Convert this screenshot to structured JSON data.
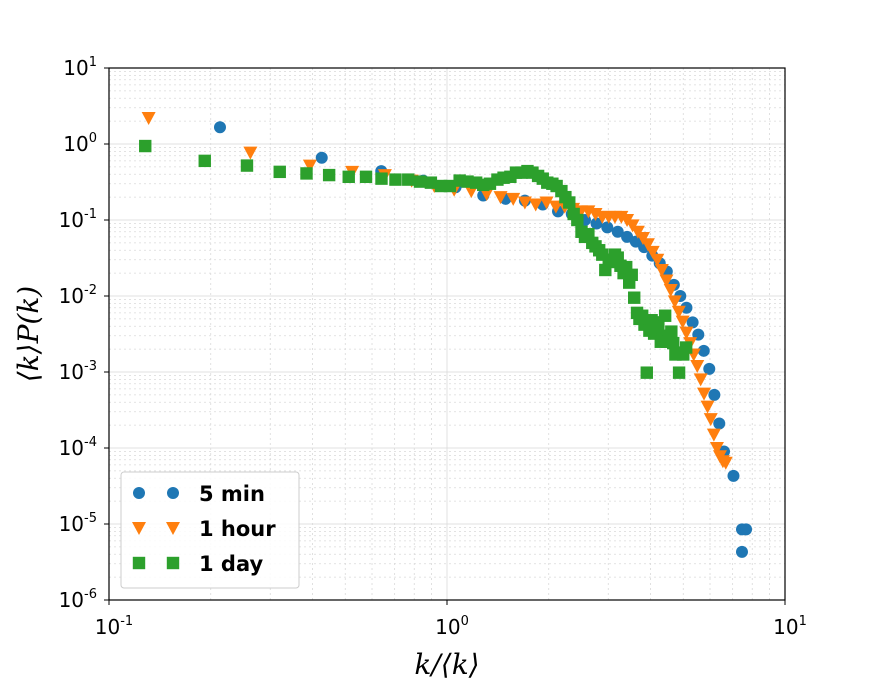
{
  "chart_data": {
    "type": "scatter",
    "xscale": "log",
    "yscale": "log",
    "xlim": [
      0.1,
      10
    ],
    "ylim": [
      1e-06,
      10
    ],
    "grid": true,
    "xlabel": "k/⟨k⟩",
    "ylabel": "⟨k⟩P(k)",
    "x_ticks": [
      {
        "base": "10",
        "exp": "-1"
      },
      {
        "base": "10",
        "exp": "0"
      },
      {
        "base": "10",
        "exp": "1"
      }
    ],
    "y_ticks": [
      {
        "base": "10",
        "exp": "-6"
      },
      {
        "base": "10",
        "exp": "-5"
      },
      {
        "base": "10",
        "exp": "-4"
      },
      {
        "base": "10",
        "exp": "-3"
      },
      {
        "base": "10",
        "exp": "-2"
      },
      {
        "base": "10",
        "exp": "-1"
      },
      {
        "base": "10",
        "exp": "0"
      },
      {
        "base": "10",
        "exp": "1"
      }
    ],
    "legend_position": "lower-left",
    "series": [
      {
        "name": "5 min",
        "marker": "circle",
        "color": "#1f77b4",
        "points": [
          [
            0.213,
            1.66
          ],
          [
            0.426,
            0.66
          ],
          [
            0.639,
            0.44
          ],
          [
            0.85,
            0.33
          ],
          [
            1.06,
            0.27
          ],
          [
            1.28,
            0.21
          ],
          [
            1.49,
            0.19
          ],
          [
            1.7,
            0.18
          ],
          [
            1.92,
            0.16
          ],
          [
            2.13,
            0.13
          ],
          [
            2.34,
            0.12
          ],
          [
            2.56,
            0.1
          ],
          [
            2.77,
            0.09
          ],
          [
            2.98,
            0.08
          ],
          [
            3.2,
            0.07
          ],
          [
            3.41,
            0.06
          ],
          [
            3.62,
            0.052
          ],
          [
            3.83,
            0.044
          ],
          [
            4.05,
            0.034
          ],
          [
            4.26,
            0.027
          ],
          [
            4.47,
            0.021
          ],
          [
            4.69,
            0.014
          ],
          [
            4.9,
            0.01
          ],
          [
            5.11,
            0.007
          ],
          [
            5.33,
            0.0045
          ],
          [
            5.54,
            0.0031
          ],
          [
            5.75,
            0.0019
          ],
          [
            5.97,
            0.0011
          ],
          [
            6.18,
            0.0005
          ],
          [
            6.39,
            0.00021
          ],
          [
            6.6,
            9e-05
          ],
          [
            7.04,
            4.3e-05
          ],
          [
            7.46,
            8.5e-06
          ],
          [
            7.67,
            8.5e-06
          ],
          [
            7.46,
            4.3e-06
          ]
        ]
      },
      {
        "name": "1 hour",
        "marker": "triangle-down",
        "color": "#ff7f0e",
        "points": [
          [
            0.131,
            2.2
          ],
          [
            0.262,
            0.77
          ],
          [
            0.393,
            0.52
          ],
          [
            0.524,
            0.43
          ],
          [
            0.655,
            0.39
          ],
          [
            0.786,
            0.33
          ],
          [
            0.917,
            0.28
          ],
          [
            1.05,
            0.25
          ],
          [
            1.18,
            0.24
          ],
          [
            1.31,
            0.22
          ],
          [
            1.44,
            0.2
          ],
          [
            1.57,
            0.19
          ],
          [
            1.7,
            0.17
          ],
          [
            1.83,
            0.16
          ],
          [
            1.97,
            0.17
          ],
          [
            2.1,
            0.15
          ],
          [
            2.23,
            0.15
          ],
          [
            2.36,
            0.14
          ],
          [
            2.49,
            0.13
          ],
          [
            2.62,
            0.13
          ],
          [
            2.75,
            0.12
          ],
          [
            2.88,
            0.11
          ],
          [
            3.01,
            0.11
          ],
          [
            3.14,
            0.11
          ],
          [
            3.28,
            0.11
          ],
          [
            3.41,
            0.1
          ],
          [
            3.54,
            0.085
          ],
          [
            3.67,
            0.07
          ],
          [
            3.8,
            0.058
          ],
          [
            3.93,
            0.048
          ],
          [
            4.06,
            0.038
          ],
          [
            4.19,
            0.03
          ],
          [
            4.32,
            0.022
          ],
          [
            4.46,
            0.016
          ],
          [
            4.59,
            0.012
          ],
          [
            4.72,
            0.0085
          ],
          [
            4.85,
            0.0062
          ],
          [
            4.98,
            0.0046
          ],
          [
            5.11,
            0.0033
          ],
          [
            5.24,
            0.0024
          ],
          [
            5.37,
            0.0017
          ],
          [
            5.5,
            0.0012
          ],
          [
            5.63,
            0.0008
          ],
          [
            5.76,
            0.00052
          ],
          [
            5.9,
            0.00035
          ],
          [
            6.03,
            0.00024
          ],
          [
            6.16,
            0.00015
          ],
          [
            6.29,
            0.0001
          ],
          [
            6.42,
            7.8e-05
          ],
          [
            6.55,
            6.7e-05
          ],
          [
            6.68,
            6.4e-05
          ]
        ]
      },
      {
        "name": "1 day",
        "marker": "square",
        "color": "#2ca02c",
        "points": [
          [
            0.128,
            0.94
          ],
          [
            0.192,
            0.6
          ],
          [
            0.256,
            0.52
          ],
          [
            0.32,
            0.43
          ],
          [
            0.384,
            0.41
          ],
          [
            0.448,
            0.39
          ],
          [
            0.512,
            0.37
          ],
          [
            0.576,
            0.37
          ],
          [
            0.64,
            0.35
          ],
          [
            0.704,
            0.34
          ],
          [
            0.768,
            0.34
          ],
          [
            0.832,
            0.32
          ],
          [
            0.896,
            0.31
          ],
          [
            0.96,
            0.28
          ],
          [
            1.02,
            0.28
          ],
          [
            1.09,
            0.33
          ],
          [
            1.15,
            0.32
          ],
          [
            1.22,
            0.31
          ],
          [
            1.28,
            0.29
          ],
          [
            1.34,
            0.3
          ],
          [
            1.41,
            0.34
          ],
          [
            1.47,
            0.36
          ],
          [
            1.54,
            0.37
          ],
          [
            1.6,
            0.42
          ],
          [
            1.66,
            0.42
          ],
          [
            1.73,
            0.44
          ],
          [
            1.79,
            0.42
          ],
          [
            1.86,
            0.38
          ],
          [
            1.92,
            0.35
          ],
          [
            1.98,
            0.31
          ],
          [
            2.05,
            0.3
          ],
          [
            2.11,
            0.28
          ],
          [
            2.18,
            0.24
          ],
          [
            2.24,
            0.2
          ],
          [
            2.3,
            0.17
          ],
          [
            2.37,
            0.12
          ],
          [
            2.43,
            0.1
          ],
          [
            2.5,
            0.07
          ],
          [
            2.56,
            0.06
          ],
          [
            2.62,
            0.065
          ],
          [
            2.69,
            0.05
          ],
          [
            2.75,
            0.045
          ],
          [
            2.82,
            0.04
          ],
          [
            2.88,
            0.035
          ],
          [
            2.94,
            0.022
          ],
          [
            3.01,
            0.03
          ],
          [
            3.07,
            0.028
          ],
          [
            3.14,
            0.035
          ],
          [
            3.2,
            0.032
          ],
          [
            3.26,
            0.025
          ],
          [
            3.33,
            0.02
          ],
          [
            3.39,
            0.024
          ],
          [
            3.46,
            0.015
          ],
          [
            3.52,
            0.019
          ],
          [
            3.58,
            0.0095
          ],
          [
            3.65,
            0.006
          ],
          [
            3.71,
            0.005
          ],
          [
            3.78,
            0.0055
          ],
          [
            3.84,
            0.0042
          ],
          [
            3.9,
            0.00098
          ],
          [
            3.97,
            0.0035
          ],
          [
            4.03,
            0.0048
          ],
          [
            4.1,
            0.0032
          ],
          [
            4.16,
            0.0045
          ],
          [
            4.22,
            0.0039
          ],
          [
            4.29,
            0.0025
          ],
          [
            4.35,
            0.003
          ],
          [
            4.42,
            0.0055
          ],
          [
            4.48,
            0.0025
          ],
          [
            4.54,
            0.0028
          ],
          [
            4.61,
            0.0034
          ],
          [
            4.67,
            0.0024
          ],
          [
            4.74,
            0.0017
          ],
          [
            4.8,
            0.0018
          ],
          [
            4.86,
            0.00098
          ],
          [
            5.0,
            0.0017
          ],
          [
            5.1,
            0.0021
          ]
        ]
      }
    ]
  }
}
